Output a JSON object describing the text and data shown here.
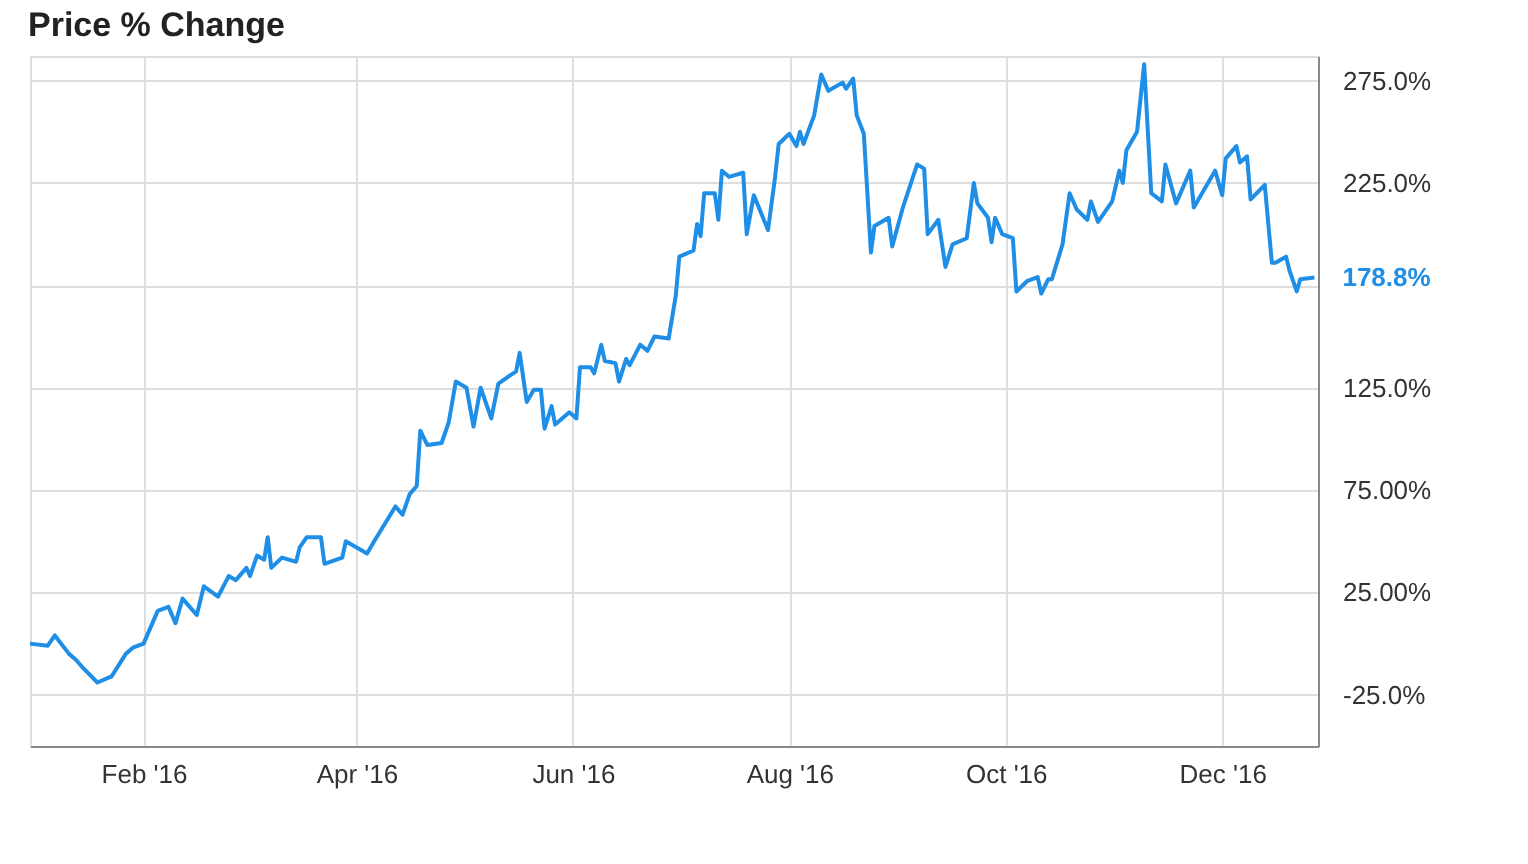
{
  "chart_data": {
    "type": "line",
    "title": "Price % Change",
    "x": [
      "2015-12-31",
      "2016-01-05",
      "2016-01-07",
      "2016-01-11",
      "2016-01-13",
      "2016-01-15",
      "2016-01-19",
      "2016-01-23",
      "2016-01-27",
      "2016-01-29",
      "2016-02-01",
      "2016-02-05",
      "2016-02-08",
      "2016-02-10",
      "2016-02-12",
      "2016-02-16",
      "2016-02-18",
      "2016-02-22",
      "2016-02-25",
      "2016-02-27",
      "2016-03-01",
      "2016-03-02",
      "2016-03-04",
      "2016-03-06",
      "2016-03-07",
      "2016-03-08",
      "2016-03-11",
      "2016-03-15",
      "2016-03-16",
      "2016-03-18",
      "2016-03-22",
      "2016-03-23",
      "2016-03-28",
      "2016-03-29",
      "2016-04-04",
      "2016-04-06",
      "2016-04-12",
      "2016-04-14",
      "2016-04-16",
      "2016-04-18",
      "2016-04-19",
      "2016-04-21",
      "2016-04-25",
      "2016-04-27",
      "2016-04-29",
      "2016-05-02",
      "2016-05-04",
      "2016-05-06",
      "2016-05-09",
      "2016-05-11",
      "2016-05-16",
      "2016-05-17",
      "2016-05-19",
      "2016-05-21",
      "2016-05-23",
      "2016-05-24",
      "2016-05-26",
      "2016-05-27",
      "2016-05-31",
      "2016-06-02",
      "2016-06-03",
      "2016-06-06",
      "2016-06-07",
      "2016-06-09",
      "2016-06-10",
      "2016-06-13",
      "2016-06-14",
      "2016-06-16",
      "2016-06-17",
      "2016-06-20",
      "2016-06-22",
      "2016-06-24",
      "2016-06-28",
      "2016-06-30",
      "2016-07-01",
      "2016-07-05",
      "2016-07-06",
      "2016-07-07",
      "2016-07-08",
      "2016-07-11",
      "2016-07-12",
      "2016-07-13",
      "2016-07-15",
      "2016-07-19",
      "2016-07-20",
      "2016-07-22",
      "2016-07-26",
      "2016-07-28",
      "2016-07-29",
      "2016-08-01",
      "2016-08-03",
      "2016-08-04",
      "2016-08-05",
      "2016-08-08",
      "2016-08-10",
      "2016-08-12",
      "2016-08-16",
      "2016-08-17",
      "2016-08-19",
      "2016-08-20",
      "2016-08-22",
      "2016-08-24",
      "2016-08-25",
      "2016-08-29",
      "2016-08-30",
      "2016-09-02",
      "2016-09-06",
      "2016-09-08",
      "2016-09-09",
      "2016-09-12",
      "2016-09-14",
      "2016-09-16",
      "2016-09-20",
      "2016-09-22",
      "2016-09-23",
      "2016-09-26",
      "2016-09-27",
      "2016-09-28",
      "2016-09-30",
      "2016-10-03",
      "2016-10-04",
      "2016-10-07",
      "2016-10-10",
      "2016-10-11",
      "2016-10-13",
      "2016-10-14",
      "2016-10-17",
      "2016-10-19",
      "2016-10-21",
      "2016-10-24",
      "2016-10-25",
      "2016-10-27",
      "2016-10-31",
      "2016-11-02",
      "2016-11-03",
      "2016-11-04",
      "2016-11-07",
      "2016-11-09",
      "2016-11-11",
      "2016-11-14",
      "2016-11-15",
      "2016-11-18",
      "2016-11-22",
      "2016-11-23",
      "2016-11-29",
      "2016-12-01",
      "2016-12-02",
      "2016-12-05",
      "2016-12-06",
      "2016-12-08",
      "2016-12-09",
      "2016-12-13",
      "2016-12-15",
      "2016-12-16",
      "2016-12-19",
      "2016-12-20",
      "2016-12-22",
      "2016-12-23",
      "2016-12-27"
    ],
    "series": [
      {
        "color": "#1f8ee6",
        "values": [
          0,
          -1,
          4,
          -5,
          -8,
          -12,
          -19,
          -16,
          -5,
          -2,
          0,
          16,
          18,
          10,
          22,
          14,
          28,
          23,
          33,
          31,
          37,
          33,
          43,
          41,
          52,
          37,
          42,
          40,
          47,
          52,
          52,
          39,
          42,
          50,
          44,
          50,
          67,
          63,
          73,
          77,
          104,
          97,
          98,
          108,
          128,
          125,
          106,
          125,
          110,
          127,
          133,
          142,
          118,
          124,
          124,
          105,
          116,
          107,
          113,
          110,
          135,
          135,
          132,
          146,
          138,
          137,
          128,
          139,
          136,
          146,
          143,
          150,
          149,
          170,
          189,
          192,
          205,
          199,
          220,
          220,
          207,
          231,
          228,
          230,
          200,
          219,
          202,
          228,
          244,
          249,
          243,
          250,
          244,
          258,
          278,
          270,
          274,
          271,
          276,
          258,
          249,
          191,
          204,
          208,
          194,
          213,
          234,
          232,
          200,
          207,
          184,
          195,
          198,
          225,
          215,
          208,
          196,
          208,
          200,
          198,
          172,
          177,
          179,
          171,
          178,
          178,
          195,
          220,
          212,
          207,
          216,
          206,
          216,
          231,
          225,
          241,
          250,
          283,
          220,
          216,
          234,
          215,
          231,
          213,
          231,
          219,
          237,
          243,
          235,
          238,
          217,
          224,
          186,
          186,
          189,
          182,
          172,
          178,
          178.8
        ]
      }
    ],
    "xlim": [
      "2015-12-31",
      "2016-12-28"
    ],
    "xticks": [
      {
        "value": "2016-02-01",
        "label": "Feb '16"
      },
      {
        "value": "2016-04-01",
        "label": "Apr '16"
      },
      {
        "value": "2016-06-01",
        "label": "Jun '16"
      },
      {
        "value": "2016-08-01",
        "label": "Aug '16"
      },
      {
        "value": "2016-10-01",
        "label": "Oct '16"
      },
      {
        "value": "2016-12-01",
        "label": "Dec '16"
      }
    ],
    "ylim": [
      -50,
      287
    ],
    "yticks": [
      {
        "value": -25,
        "label": "-25.0%"
      },
      {
        "value": 25,
        "label": "25.00%"
      },
      {
        "value": 75,
        "label": "75.00%"
      },
      {
        "value": 125,
        "label": "125.0%"
      },
      {
        "value": 175,
        "label": null
      },
      {
        "value": 225,
        "label": "225.0%"
      },
      {
        "value": 275,
        "label": "275.0%"
      }
    ],
    "annotations": [
      {
        "text": "178.8%",
        "x": "2016-12-27",
        "y": 178.8
      }
    ],
    "grid": true,
    "legend": false,
    "marker": "none",
    "line_style": "solid"
  }
}
